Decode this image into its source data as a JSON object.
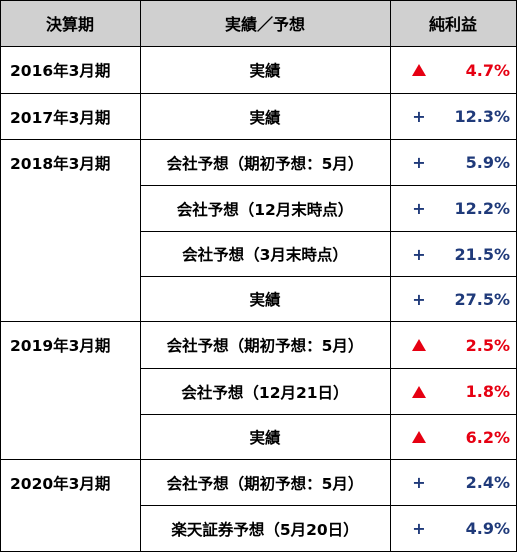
{
  "headers": {
    "period": "決算期",
    "type": "実績／予想",
    "profit": "純利益"
  },
  "years": [
    "2016年3月期",
    "2017年3月期",
    "2018年3月期",
    "2019年3月期",
    "2020年3月期"
  ],
  "rows": [
    {
      "type": "実績",
      "sign": "▲",
      "value": "4.7%"
    },
    {
      "type": "実績",
      "sign": "+",
      "value": "12.3%"
    },
    {
      "type": "会社予想（期初予想：5月）",
      "sign": "+",
      "value": "5.9%"
    },
    {
      "type": "会社予想（12月末時点）",
      "sign": "+",
      "value": "12.2%"
    },
    {
      "type": "会社予想（3月末時点）",
      "sign": "+",
      "value": "21.5%"
    },
    {
      "type": "実績",
      "sign": "+",
      "value": "27.5%"
    },
    {
      "type": "会社予想（期初予想：5月）",
      "sign": "▲",
      "value": "2.5%"
    },
    {
      "type": "会社予想（12月21日）",
      "sign": "▲",
      "value": "1.8%"
    },
    {
      "type": "実績",
      "sign": "▲",
      "value": "6.2%"
    },
    {
      "type": "会社予想（期初予想：5月）",
      "sign": "+",
      "value": "2.4%"
    },
    {
      "type": "楽天証券予想（5月20日）",
      "sign": "+",
      "value": "4.9%"
    }
  ],
  "colors": {
    "negative": "#e60012",
    "positive": "#1f3a7a",
    "header_bg": "#d0d0d0"
  }
}
